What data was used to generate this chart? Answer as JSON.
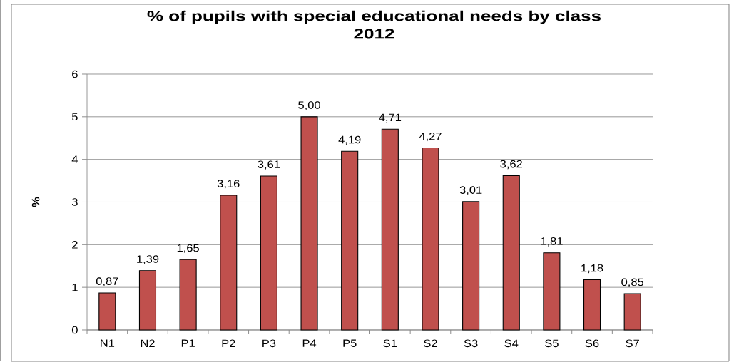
{
  "chart_data": {
    "type": "bar",
    "title": "% of pupils with special educational needs by class 2012",
    "ylabel": "%",
    "categories": [
      "N1",
      "N2",
      "P1",
      "P2",
      "P3",
      "P4",
      "P5",
      "S1",
      "S2",
      "S3",
      "S4",
      "S5",
      "S6",
      "S7"
    ],
    "values": [
      0.87,
      1.39,
      1.65,
      3.16,
      3.61,
      5.0,
      4.19,
      4.71,
      4.27,
      3.01,
      3.62,
      1.81,
      1.18,
      0.85
    ],
    "value_labels": [
      "0,87",
      "1,39",
      "1,65",
      "3,16",
      "3,61",
      "5,00",
      "4,19",
      "4,71",
      "4,27",
      "3,01",
      "3,62",
      "1,81",
      "1,18",
      "0,85"
    ],
    "color": "#c0504d",
    "ylim": [
      0,
      6
    ],
    "yticks": [
      0,
      1,
      2,
      3,
      4,
      5,
      6
    ],
    "grid": "y"
  }
}
